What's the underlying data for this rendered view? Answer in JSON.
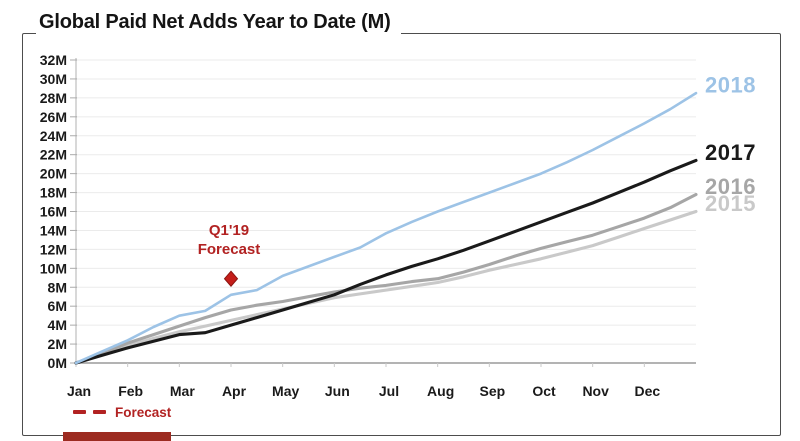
{
  "title": "Global Paid Net Adds Year to Date (M)",
  "annotation": {
    "line1": "Q1'19",
    "line2": "Forecast",
    "color": "#B22222"
  },
  "legend": {
    "label": "Forecast",
    "color": "#B22222"
  },
  "chart_data": {
    "type": "line",
    "title": "Global Paid Net Adds Year to Date (M)",
    "xlabel": "",
    "ylabel": "",
    "grid": true,
    "ylim": [
      0,
      32
    ],
    "y_tick_step": 2,
    "y_tick_labels": [
      "0M",
      "2M",
      "4M",
      "6M",
      "8M",
      "10M",
      "12M",
      "14M",
      "16M",
      "18M",
      "20M",
      "22M",
      "24M",
      "26M",
      "28M",
      "30M",
      "32M"
    ],
    "x_tick_labels": [
      "Jan",
      "Feb",
      "Mar",
      "Apr",
      "May",
      "Jun",
      "Jul",
      "Aug",
      "Sep",
      "Oct",
      "Nov",
      "Dec"
    ],
    "x_months": [
      0,
      0.5,
      1,
      1.5,
      2,
      2.5,
      3,
      3.5,
      4,
      4.5,
      5,
      5.5,
      6,
      6.5,
      7,
      7.5,
      8,
      8.5,
      9,
      9.5,
      10,
      10.5,
      11,
      11.5,
      12
    ],
    "series": [
      {
        "name": "2018",
        "color": "#9DC3E6",
        "width": 2.6,
        "values": [
          0,
          1.2,
          2.4,
          3.8,
          5.0,
          5.5,
          7.2,
          7.7,
          9.2,
          10.2,
          11.2,
          12.2,
          13.7,
          14.9,
          16.0,
          17.0,
          18.0,
          19.0,
          20.0,
          21.2,
          22.5,
          23.9,
          25.3,
          26.8,
          28.5
        ]
      },
      {
        "name": "2017",
        "color": "#1A1A1A",
        "width": 3.1,
        "values": [
          0,
          0.8,
          1.6,
          2.3,
          3.0,
          3.2,
          4.0,
          4.8,
          5.6,
          6.4,
          7.2,
          8.3,
          9.3,
          10.2,
          11.0,
          11.9,
          12.9,
          13.9,
          14.9,
          15.9,
          16.9,
          18.0,
          19.1,
          20.3,
          21.4
        ]
      },
      {
        "name": "2016",
        "color": "#A6A6A6",
        "width": 3.1,
        "values": [
          0,
          1.0,
          2.1,
          3.0,
          3.9,
          4.8,
          5.6,
          6.1,
          6.5,
          7.0,
          7.5,
          7.9,
          8.2,
          8.6,
          8.9,
          9.6,
          10.4,
          11.3,
          12.1,
          12.8,
          13.5,
          14.4,
          15.3,
          16.4,
          17.8
        ]
      },
      {
        "name": "2015",
        "color": "#C9C9C9",
        "width": 3.1,
        "values": [
          0,
          0.9,
          1.8,
          2.6,
          3.3,
          3.9,
          4.5,
          5.1,
          5.7,
          6.3,
          6.9,
          7.3,
          7.7,
          8.1,
          8.5,
          9.1,
          9.8,
          10.4,
          11.0,
          11.7,
          12.4,
          13.3,
          14.2,
          15.1,
          16.0
        ]
      }
    ],
    "forecast_point": {
      "label": "Q1'19 Forecast",
      "x_month": 3,
      "value": 8.9,
      "color": "#C41E1A",
      "edge_color": "#8B1410"
    },
    "legend_position": "line-end-right"
  }
}
